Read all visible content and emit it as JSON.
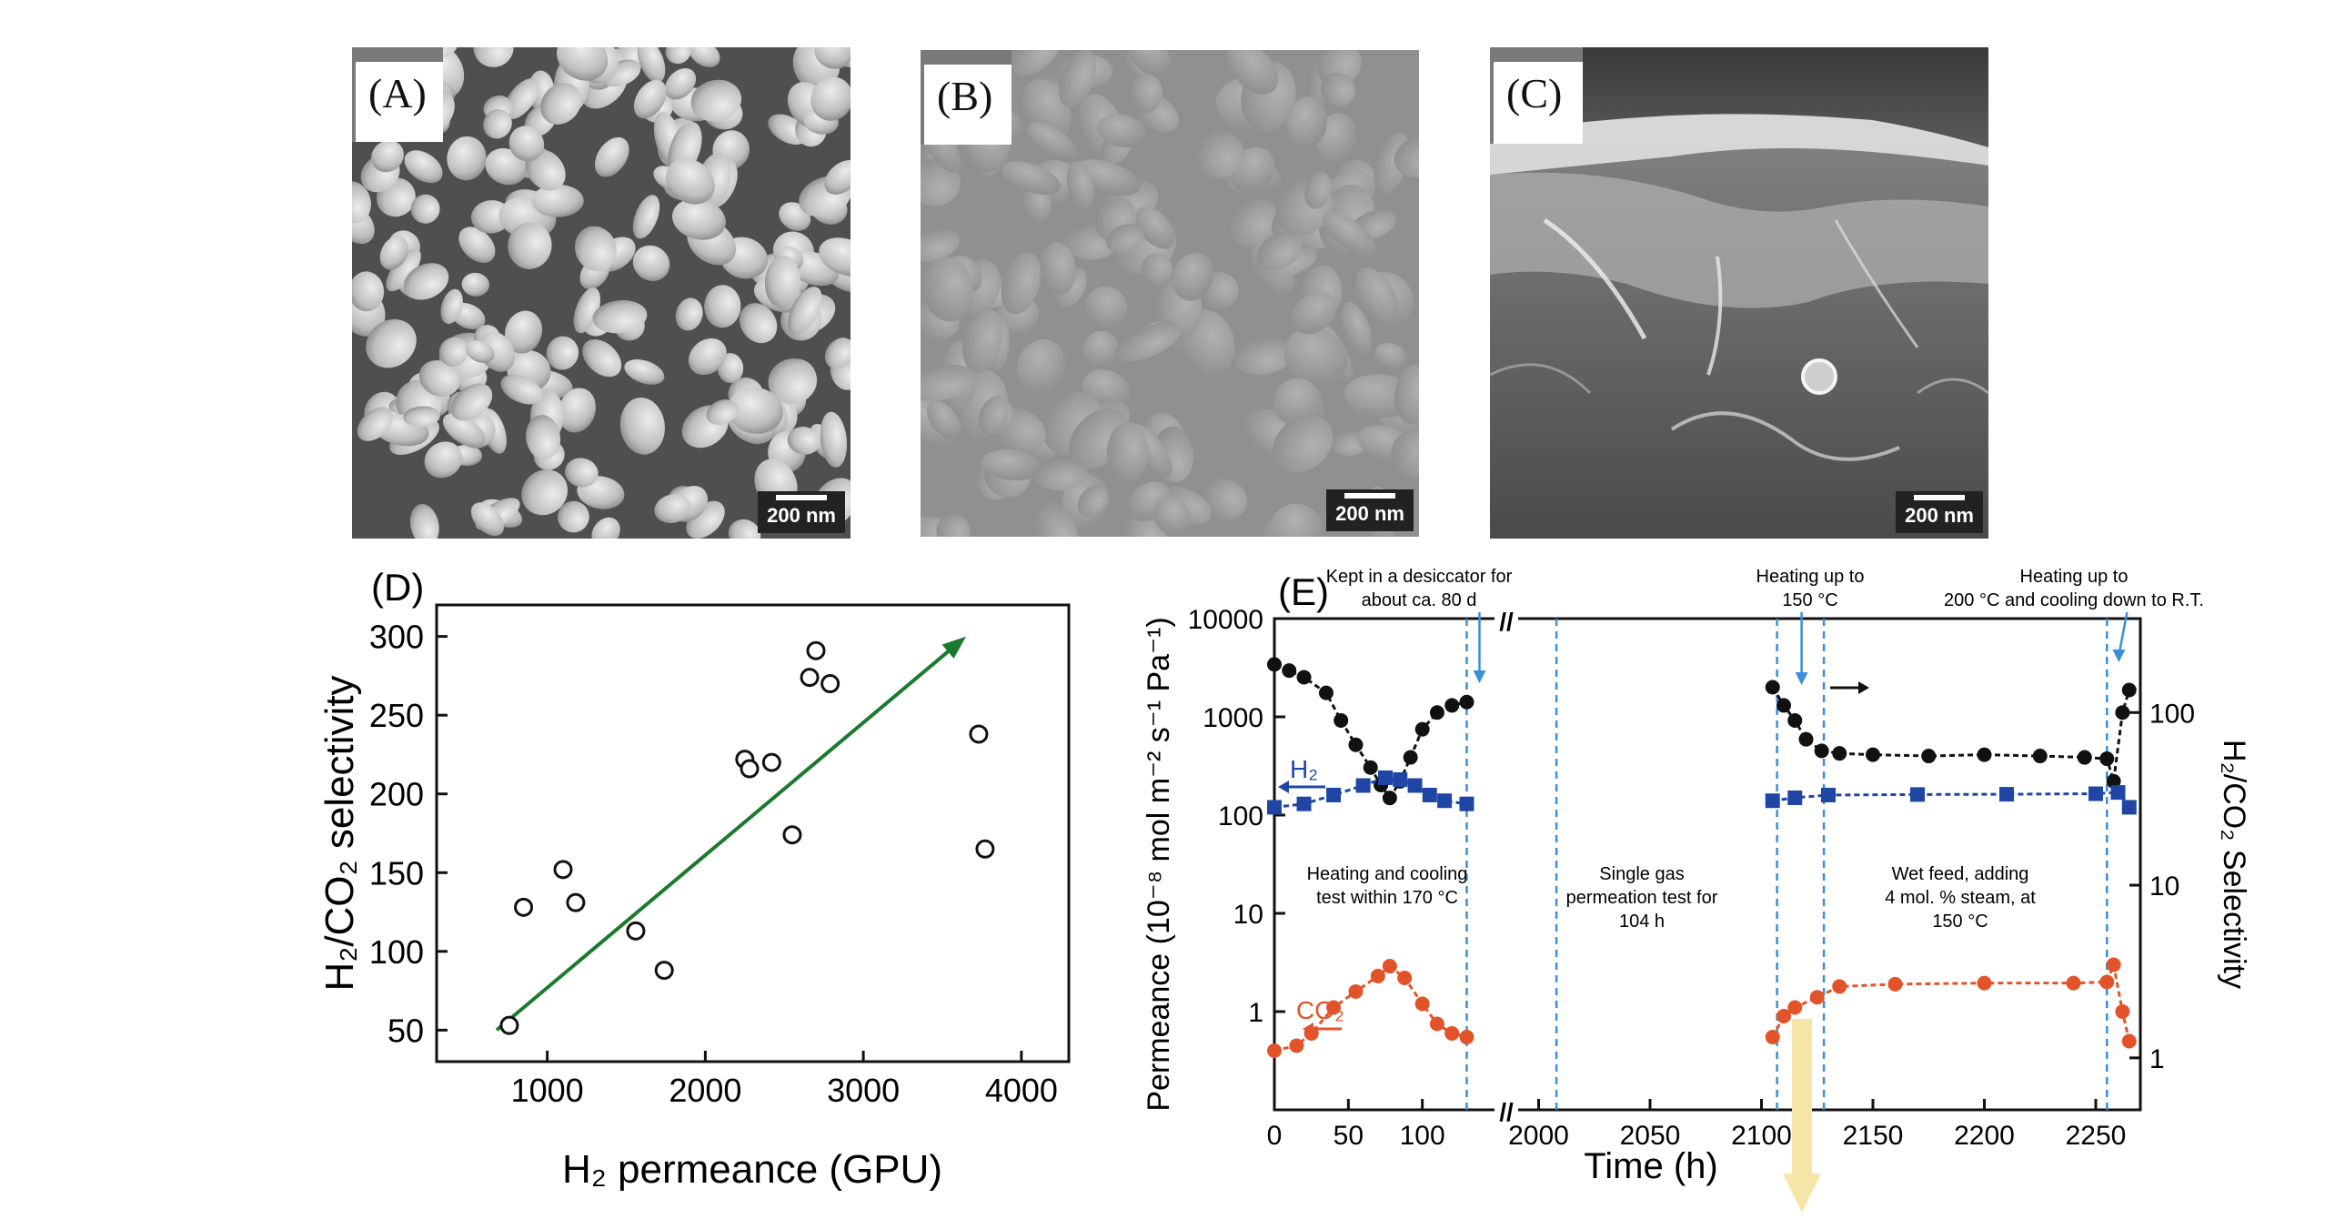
{
  "panels": {
    "a": {
      "label": "(A)",
      "scale": "200 nm"
    },
    "b": {
      "label": "(B)",
      "scale": "200 nm"
    },
    "c": {
      "label": "(C)",
      "scale": "200 nm"
    }
  },
  "chart_data": [
    {
      "type": "scatter",
      "panel_label": "(D)",
      "xlabel": "H₂ permeance (GPU)",
      "ylabel": "H₂/CO₂ selectivity",
      "xlim": [
        300,
        4300
      ],
      "ylim": [
        30,
        320
      ],
      "xticks": [
        "1000",
        "2000",
        "3000",
        "4000"
      ],
      "yticks": [
        "50",
        "100",
        "150",
        "200",
        "250",
        "300"
      ],
      "points": [
        {
          "x": 760,
          "y": 53
        },
        {
          "x": 850,
          "y": 128
        },
        {
          "x": 1100,
          "y": 152
        },
        {
          "x": 1180,
          "y": 131
        },
        {
          "x": 1560,
          "y": 113
        },
        {
          "x": 1740,
          "y": 88
        },
        {
          "x": 2250,
          "y": 222
        },
        {
          "x": 2280,
          "y": 216
        },
        {
          "x": 2420,
          "y": 220
        },
        {
          "x": 2550,
          "y": 174
        },
        {
          "x": 2660,
          "y": 274
        },
        {
          "x": 2700,
          "y": 291
        },
        {
          "x": 2790,
          "y": 270
        },
        {
          "x": 3730,
          "y": 238
        },
        {
          "x": 3770,
          "y": 165
        }
      ],
      "trend": {
        "x": [
          680,
          3650
        ],
        "y": [
          50,
          300
        ],
        "color": "#1a7a2e"
      }
    },
    {
      "type": "line",
      "panel_label": "(E)",
      "xlabel": "Time (h)",
      "ylabel_left": "Permeance (10⁻⁸ mol m⁻² s⁻¹ Pa⁻¹)",
      "ylabel_right": "H₂/CO₂ Selectivity",
      "yscale": "log",
      "ylim_left": [
        0.1,
        10000
      ],
      "ylim_right": [
        0.5,
        350
      ],
      "xticks": [
        "0",
        "50",
        "100",
        "2000",
        "2050",
        "2100",
        "2150",
        "2200",
        "2250"
      ],
      "yticks_left": [
        "1",
        "10",
        "100",
        "1000",
        "10000"
      ],
      "yticks_right": [
        "1",
        "10",
        "100"
      ],
      "axis_break": "//",
      "colors": {
        "selectivity": "#111111",
        "h2": "#1f45a5",
        "co2": "#e2532a",
        "guides": "#3a8fd8"
      },
      "legend": {
        "h2": "H₂",
        "co2": "CO₂"
      },
      "annotations": {
        "desiccator": [
          "Kept in a desiccator for",
          "about ca. 80 d"
        ],
        "heating150": [
          "Heating up to",
          "150 °C"
        ],
        "heating200": [
          "Heating up to",
          "200 °C and cooling down to R.T."
        ],
        "test1": [
          "Heating and cooling",
          "test within 170 °C"
        ],
        "test2": [
          "Single gas",
          "permeation test for",
          "104 h"
        ],
        "test3": [
          "Wet feed, adding",
          "4 mol. % steam, at",
          "150 °C"
        ]
      },
      "segments": {
        "seg1_hours": [
          0,
          130
        ],
        "seg2_hours": [
          2105,
          2265
        ]
      },
      "series": [
        {
          "name": "H2/CO2 selectivity (right axis)",
          "seg1": [
            [
              0,
              190
            ],
            [
              10,
              175
            ],
            [
              20,
              160
            ],
            [
              35,
              130
            ],
            [
              45,
              90
            ],
            [
              55,
              65
            ],
            [
              65,
              48
            ],
            [
              72,
              38
            ],
            [
              78,
              32
            ],
            [
              85,
              40
            ],
            [
              92,
              55
            ],
            [
              100,
              80
            ],
            [
              110,
              100
            ],
            [
              120,
              110
            ],
            [
              130,
              115
            ]
          ],
          "seg2": [
            [
              2105,
              140
            ],
            [
              2110,
              110
            ],
            [
              2115,
              90
            ],
            [
              2120,
              70
            ],
            [
              2127,
              60
            ],
            [
              2135,
              58
            ],
            [
              2150,
              57
            ],
            [
              2175,
              56
            ],
            [
              2200,
              57
            ],
            [
              2225,
              56
            ],
            [
              2245,
              55
            ],
            [
              2255,
              54
            ],
            [
              2258,
              40
            ],
            [
              2262,
              100
            ],
            [
              2265,
              135
            ]
          ]
        },
        {
          "name": "H2",
          "seg1": [
            [
              0,
              120
            ],
            [
              20,
              130
            ],
            [
              40,
              160
            ],
            [
              60,
              200
            ],
            [
              75,
              240
            ],
            [
              85,
              230
            ],
            [
              95,
              200
            ],
            [
              105,
              160
            ],
            [
              115,
              140
            ],
            [
              130,
              130
            ]
          ],
          "seg2": [
            [
              2105,
              140
            ],
            [
              2115,
              150
            ],
            [
              2130,
              160
            ],
            [
              2170,
              162
            ],
            [
              2210,
              163
            ],
            [
              2250,
              165
            ],
            [
              2260,
              170
            ],
            [
              2265,
              120
            ]
          ]
        },
        {
          "name": "CO2",
          "seg1": [
            [
              0,
              0.4
            ],
            [
              15,
              0.45
            ],
            [
              25,
              0.6
            ],
            [
              40,
              1.1
            ],
            [
              55,
              1.6
            ],
            [
              70,
              2.3
            ],
            [
              78,
              2.9
            ],
            [
              88,
              2.2
            ],
            [
              100,
              1.2
            ],
            [
              110,
              0.75
            ],
            [
              120,
              0.6
            ],
            [
              130,
              0.55
            ]
          ],
          "seg2": [
            [
              2105,
              0.55
            ],
            [
              2110,
              0.9
            ],
            [
              2115,
              1.1
            ],
            [
              2125,
              1.4
            ],
            [
              2135,
              1.8
            ],
            [
              2160,
              1.9
            ],
            [
              2200,
              1.95
            ],
            [
              2240,
              1.95
            ],
            [
              2255,
              2.0
            ],
            [
              2258,
              3.0
            ],
            [
              2262,
              1.0
            ],
            [
              2265,
              0.5
            ]
          ]
        }
      ]
    }
  ]
}
